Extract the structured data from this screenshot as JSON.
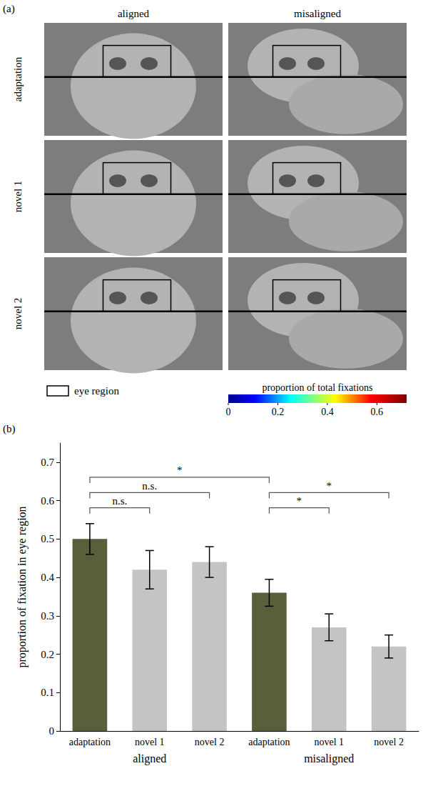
{
  "panel_a": {
    "label": "(a)",
    "columns": [
      "aligned",
      "misaligned"
    ],
    "rows": [
      "adaptation",
      "novel 1",
      "novel 2"
    ],
    "region_legend": "eye region",
    "colorbar": {
      "title": "proportion of total fixations",
      "range": [
        0,
        0.72
      ],
      "ticks": [
        0,
        0.2,
        0.4,
        0.6
      ]
    }
  },
  "chart_data": {
    "type": "bar",
    "panel_label": "(b)",
    "ylabel": "proportion of fixation in eye region",
    "categories": [
      "adaptation",
      "novel 1",
      "novel 2",
      "adaptation",
      "novel 1",
      "novel 2"
    ],
    "groups": [
      "aligned",
      "misaligned"
    ],
    "values": [
      0.5,
      0.42,
      0.44,
      0.36,
      0.27,
      0.22
    ],
    "errors": [
      0.04,
      0.05,
      0.04,
      0.035,
      0.035,
      0.03
    ],
    "colors": [
      "#5b5e3b",
      "#c4c4c4",
      "#c4c4c4",
      "#5b5e3b",
      "#c4c4c4",
      "#c4c4c4"
    ],
    "ylim": [
      0,
      0.75
    ],
    "yticks": [
      0,
      0.1,
      0.2,
      0.3,
      0.4,
      0.5,
      0.6,
      0.7
    ],
    "grid": false,
    "annotations": [
      {
        "from": 0,
        "to": 1,
        "label": "n.s."
      },
      {
        "from": 0,
        "to": 2,
        "label": "n.s."
      },
      {
        "from": 0,
        "to": 3,
        "label": "*"
      },
      {
        "from": 3,
        "to": 4,
        "label": "*"
      },
      {
        "from": 3,
        "to": 5,
        "label": "*"
      }
    ]
  }
}
